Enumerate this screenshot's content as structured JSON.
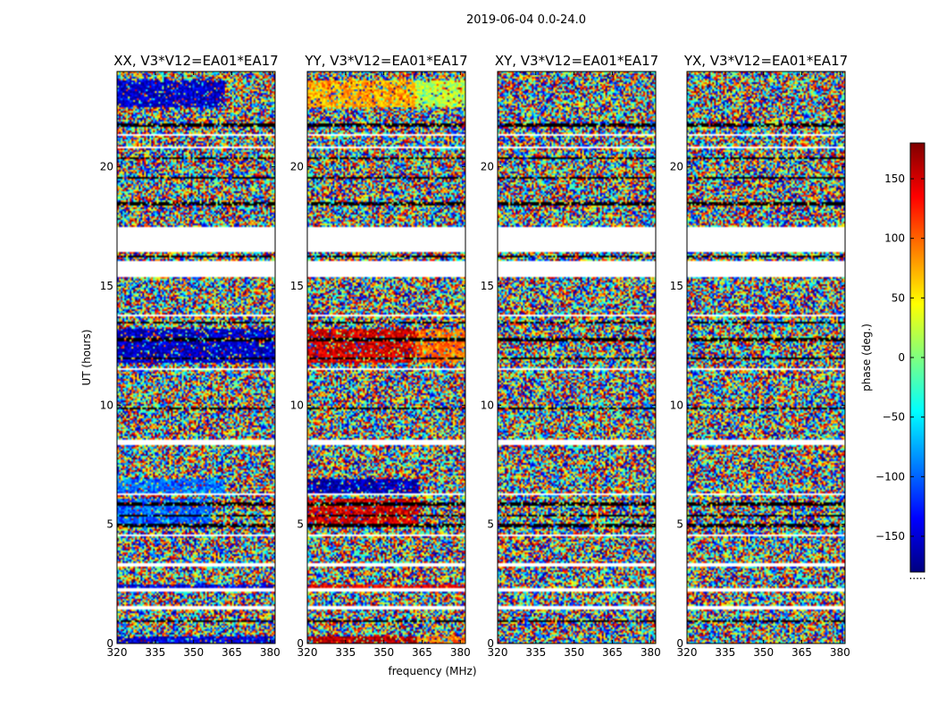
{
  "figure": {
    "suptitle": "2019-06-04 0.0-24.0"
  },
  "chart_data": {
    "type": "heatmap",
    "title": "2019-06-04 0.0-24.0",
    "xlabel": "frequency (MHz)",
    "ylabel": "UT (hours)",
    "xlim": [
      320,
      382
    ],
    "ylim": [
      0,
      24
    ],
    "xticks": [
      320,
      335,
      350,
      365,
      380
    ],
    "yticks": [
      0,
      5,
      10,
      15,
      20
    ],
    "panels": [
      {
        "title": "XX, V3*V12=EA01*EA17",
        "polarization": "XX",
        "coherent_patches": [
          {
            "t0": 0.0,
            "t1": 0.3,
            "f0": 320,
            "f1": 382,
            "phase": -150
          },
          {
            "t0": 2.3,
            "t1": 2.5,
            "f0": 320,
            "f1": 382,
            "phase": -145
          },
          {
            "t0": 4.9,
            "t1": 6.1,
            "f0": 320,
            "f1": 357,
            "phase": -100
          },
          {
            "t0": 6.3,
            "t1": 6.9,
            "f0": 320,
            "f1": 362,
            "phase": -95
          },
          {
            "t0": 11.8,
            "t1": 13.2,
            "f0": 320,
            "f1": 382,
            "phase": -155
          },
          {
            "t0": 22.5,
            "t1": 23.6,
            "f0": 320,
            "f1": 362,
            "phase": -155
          }
        ]
      },
      {
        "title": "YY, V3*V12=EA01*EA17",
        "polarization": "YY",
        "coherent_patches": [
          {
            "t0": 0.0,
            "t1": 0.3,
            "f0": 320,
            "f1": 363,
            "phase": 165
          },
          {
            "t0": 0.0,
            "t1": 0.3,
            "f0": 363,
            "f1": 382,
            "phase": 90
          },
          {
            "t0": 2.3,
            "t1": 2.5,
            "f0": 320,
            "f1": 382,
            "phase": 140
          },
          {
            "t0": 4.9,
            "t1": 6.1,
            "f0": 320,
            "f1": 364,
            "phase": 150
          },
          {
            "t0": 6.3,
            "t1": 6.9,
            "f0": 320,
            "f1": 364,
            "phase": -165
          },
          {
            "t0": 11.8,
            "t1": 13.2,
            "f0": 320,
            "f1": 362,
            "phase": 150
          },
          {
            "t0": 11.8,
            "t1": 13.2,
            "f0": 362,
            "f1": 382,
            "phase": 95
          },
          {
            "t0": 22.5,
            "t1": 23.6,
            "f0": 320,
            "f1": 362,
            "phase": 75
          },
          {
            "t0": 22.5,
            "t1": 23.6,
            "f0": 362,
            "f1": 382,
            "phase": 20
          }
        ]
      },
      {
        "title": "XY, V3*V12=EA01*EA17",
        "polarization": "XY",
        "coherent_patches": []
      },
      {
        "title": "YX, V3*V12=EA01*EA17",
        "polarization": "YX",
        "coherent_patches": []
      }
    ],
    "data_gaps_hours": [
      [
        1.45,
        1.55
      ],
      [
        2.2,
        2.3
      ],
      [
        3.25,
        3.35
      ],
      [
        3.5,
        3.55
      ],
      [
        4.5,
        4.55
      ],
      [
        6.2,
        6.27
      ],
      [
        7.7,
        7.75
      ],
      [
        8.3,
        8.55
      ],
      [
        11.45,
        11.55
      ],
      [
        13.75,
        13.8
      ],
      [
        15.35,
        16.05
      ],
      [
        16.45,
        17.5
      ],
      [
        18.8,
        18.85
      ],
      [
        20.8,
        20.85
      ],
      [
        21.3,
        21.35
      ],
      [
        22.4,
        22.45
      ],
      [
        23.6,
        23.65
      ]
    ],
    "flagged_rows_hours": [
      0.95,
      4.95,
      5.35,
      5.85,
      9.85,
      11.95,
      12.75,
      13.45,
      16.25,
      18.45,
      19.55,
      20.35,
      21.75
    ],
    "colorbar": {
      "label": "phase (deg.)",
      "range": [
        -180,
        180
      ],
      "ticks": [
        -150,
        -100,
        -50,
        0,
        50,
        100,
        150
      ],
      "colormap": "jet",
      "footer": "....."
    }
  }
}
